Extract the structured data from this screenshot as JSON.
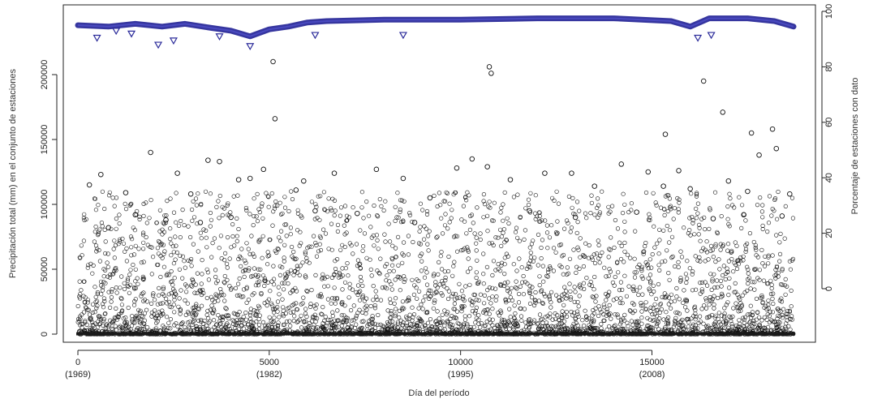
{
  "chart_data": {
    "type": "scatter",
    "title": "",
    "xlabel": "Día del período",
    "ylabel": "Precipitación total (mm) en el conjunto de estaciones",
    "ylabel_right": "Porcentaje de estaciones con dato",
    "xlim": [
      0,
      18700
    ],
    "ylim": [
      0,
      240000
    ],
    "ylim_right": [
      0,
      100
    ],
    "x_ticks": [
      {
        "value": 0,
        "label": "0",
        "sublabel": "(1969)"
      },
      {
        "value": 5000,
        "label": "5000",
        "sublabel": "(1982)"
      },
      {
        "value": 10000,
        "label": "10000",
        "sublabel": "(1995)"
      },
      {
        "value": 15000,
        "label": "15000",
        "sublabel": "(2008)"
      }
    ],
    "y_ticks": [
      {
        "value": 0,
        "label": "0"
      },
      {
        "value": 50000,
        "label": "50000"
      },
      {
        "value": 100000,
        "label": "100000"
      },
      {
        "value": 150000,
        "label": "150000"
      },
      {
        "value": 200000,
        "label": "200000"
      }
    ],
    "y2_ticks": [
      {
        "value": 0,
        "label": "0"
      },
      {
        "value": 20,
        "label": "20"
      },
      {
        "value": 40,
        "label": "40"
      },
      {
        "value": 60,
        "label": "60"
      },
      {
        "value": 80,
        "label": "80"
      },
      {
        "value": 100,
        "label": "100"
      }
    ],
    "series": [
      {
        "marker": "circle",
        "color": "#111111",
        "axis": "left",
        "points": [
          [
            1900,
            140000
          ],
          [
            3400,
            134000
          ],
          [
            3700,
            133000
          ],
          [
            4200,
            119000
          ],
          [
            4850,
            127000
          ],
          [
            5100,
            210000
          ],
          [
            5150,
            166000
          ],
          [
            5900,
            118000
          ],
          [
            6700,
            124000
          ],
          [
            7800,
            127000
          ],
          [
            9900,
            128000
          ],
          [
            10300,
            135000
          ],
          [
            10750,
            206000
          ],
          [
            10800,
            201000
          ],
          [
            10700,
            129000
          ],
          [
            11300,
            119000
          ],
          [
            12200,
            124000
          ],
          [
            12900,
            124000
          ],
          [
            14200,
            131000
          ],
          [
            14900,
            125000
          ],
          [
            15350,
            154000
          ],
          [
            15700,
            126000
          ],
          [
            16350,
            195000
          ],
          [
            16850,
            171000
          ],
          [
            17000,
            118000
          ],
          [
            17600,
            155000
          ],
          [
            17800,
            138000
          ],
          [
            18150,
            158000
          ],
          [
            18250,
            143000
          ],
          [
            18600,
            108000
          ],
          [
            300,
            115000
          ],
          [
            600,
            123000
          ],
          [
            1250,
            109000
          ],
          [
            2600,
            124000
          ],
          [
            2950,
            108000
          ],
          [
            4500,
            120000
          ],
          [
            5700,
            111000
          ],
          [
            8500,
            120000
          ],
          [
            9200,
            105000
          ],
          [
            13500,
            114000
          ],
          [
            15300,
            114000
          ],
          [
            16000,
            112000
          ],
          [
            17500,
            110000
          ],
          [
            800,
            82000
          ],
          [
            1500,
            92000
          ],
          [
            2300,
            88000
          ],
          [
            3200,
            86000
          ],
          [
            4000,
            90000
          ],
          [
            6200,
            95000
          ],
          [
            7300,
            93000
          ],
          [
            8800,
            86000
          ],
          [
            11800,
            95000
          ],
          [
            13000,
            90000
          ],
          [
            14600,
            94000
          ],
          [
            16600,
            89000
          ],
          [
            17400,
            92000
          ],
          [
            18400,
            91000
          ]
        ]
      },
      {
        "marker": "triangle-down",
        "color": "#2b2b9a",
        "axis": "right",
        "points": [
          [
            500,
            90.5
          ],
          [
            1000,
            93
          ],
          [
            1400,
            92
          ],
          [
            2100,
            88
          ],
          [
            2500,
            89.5
          ],
          [
            3700,
            91
          ],
          [
            4500,
            87.5
          ],
          [
            6200,
            91.5
          ],
          [
            8500,
            91.5
          ],
          [
            16200,
            90.5
          ],
          [
            16550,
            91.5
          ]
        ]
      },
      {
        "marker": "line",
        "color": "#2b2b9a",
        "axis": "right",
        "points": [
          [
            0,
            95
          ],
          [
            800,
            94.5
          ],
          [
            1500,
            95.5
          ],
          [
            2200,
            94.5
          ],
          [
            2800,
            95.5
          ],
          [
            3500,
            94
          ],
          [
            4000,
            93
          ],
          [
            4500,
            91
          ],
          [
            5000,
            93.5
          ],
          [
            5500,
            94.5
          ],
          [
            6000,
            96
          ],
          [
            6500,
            96.5
          ],
          [
            8000,
            97
          ],
          [
            10000,
            97
          ],
          [
            12000,
            97.5
          ],
          [
            14000,
            97.5
          ],
          [
            15500,
            96.5
          ],
          [
            16000,
            94.5
          ],
          [
            16500,
            97.5
          ],
          [
            17500,
            97.5
          ],
          [
            18200,
            96.5
          ],
          [
            18700,
            94.5
          ]
        ]
      }
    ]
  }
}
